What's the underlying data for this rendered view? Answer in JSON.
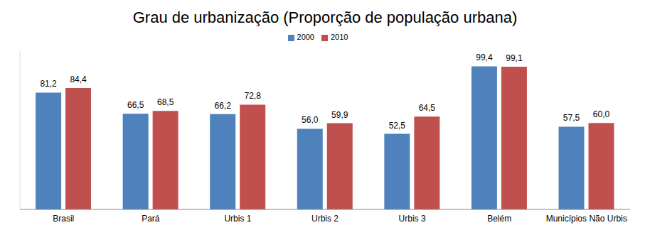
{
  "chart_data": {
    "type": "bar",
    "title": "Grau de urbanização (Proporção de população urbana)",
    "categories": [
      "Brasil",
      "Pará",
      "Urbis 1",
      "Urbis 2",
      "Urbis 3",
      "Belém",
      "Municípios Não Urbis"
    ],
    "series": [
      {
        "name": "2000",
        "color": "#4f81bd",
        "values": [
          81.2,
          66.5,
          66.2,
          56.0,
          52.5,
          99.4,
          57.5
        ],
        "value_labels": [
          "81,2",
          "66,5",
          "66,2",
          "56,0",
          "52,5",
          "99,4",
          "57,5"
        ]
      },
      {
        "name": "2010",
        "color": "#c0504d",
        "values": [
          84.4,
          68.5,
          72.8,
          59.9,
          64.5,
          99.1,
          60.0
        ],
        "value_labels": [
          "84,4",
          "68,5",
          "72,8",
          "59,9",
          "64,5",
          "99,1",
          "60,0"
        ]
      }
    ],
    "ylim": [
      0,
      110
    ],
    "legend": "top",
    "data_labels": true,
    "tick_labels": "x",
    "grid": false
  }
}
